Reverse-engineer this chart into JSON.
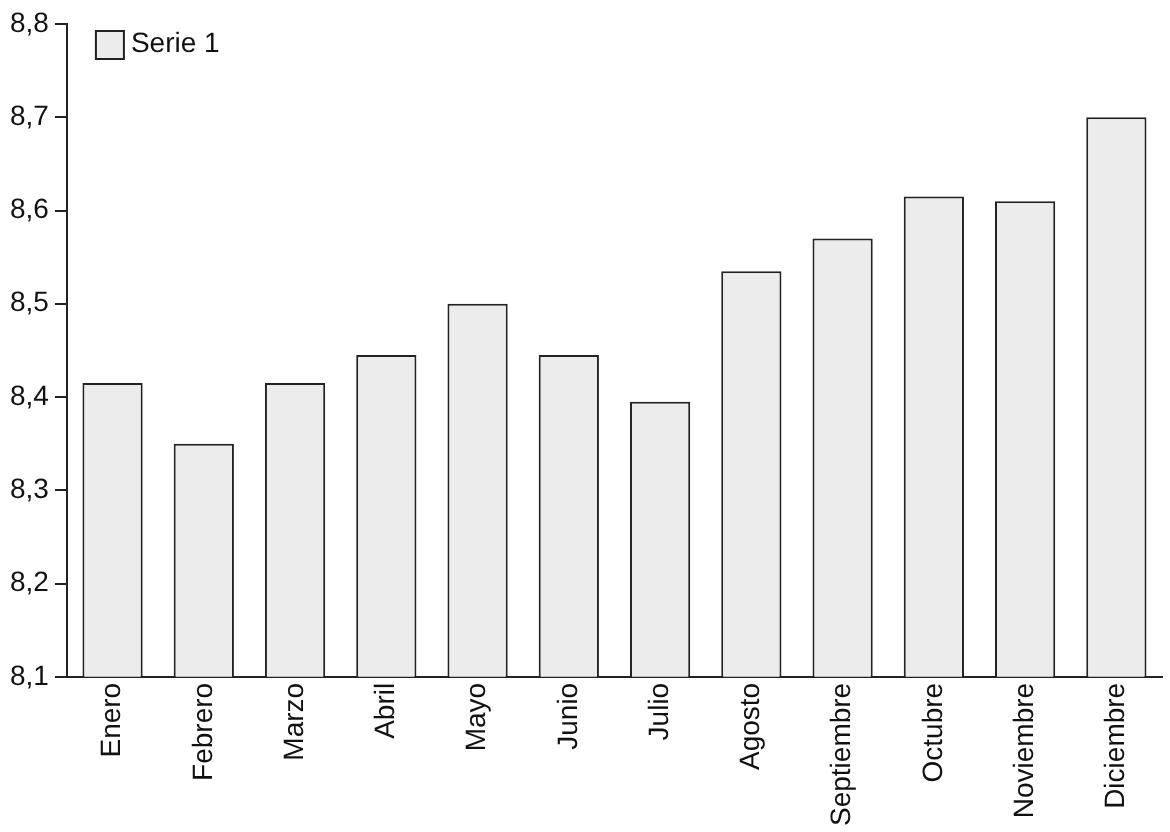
{
  "chart_data": {
    "type": "bar",
    "categories": [
      "Enero",
      "Febrero",
      "Marzo",
      "Abril",
      "Mayo",
      "Junio",
      "Julio",
      "Agosto",
      "Septiembre",
      "Octubre",
      "Noviembre",
      "Diciembre"
    ],
    "series": [
      {
        "name": "Serie 1",
        "color": "#ececec",
        "values": [
          8.415,
          8.35,
          8.415,
          8.445,
          8.5,
          8.445,
          8.395,
          8.535,
          8.57,
          8.615,
          8.61,
          8.7
        ]
      }
    ],
    "ylim": [
      8.1,
      8.8
    ],
    "yticks": [
      {
        "value": 8.1,
        "label": "8,1"
      },
      {
        "value": 8.2,
        "label": "8,2"
      },
      {
        "value": 8.3,
        "label": "8,3"
      },
      {
        "value": 8.4,
        "label": "8,4"
      },
      {
        "value": 8.5,
        "label": "8,5"
      },
      {
        "value": 8.6,
        "label": "8,6"
      },
      {
        "value": 8.7,
        "label": "8,7"
      },
      {
        "value": 8.8,
        "label": "8,8"
      }
    ],
    "grid": false,
    "legend": "top left"
  }
}
